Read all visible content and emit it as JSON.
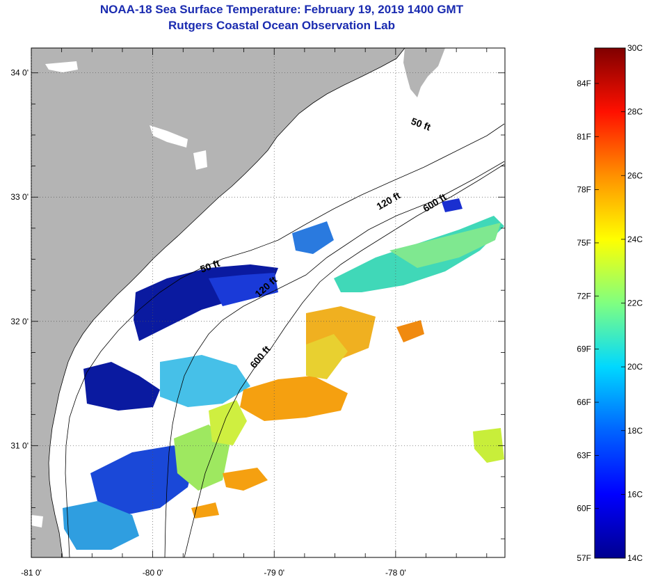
{
  "header": {
    "title": "NOAA-18 Sea Surface Temperature:  February 19, 2019 1400 GMT",
    "subtitle": "Rutgers Coastal Ocean Observation Lab"
  },
  "map": {
    "lat_labels": [
      "34 0'",
      "33 0'",
      "32 0'",
      "31 0'"
    ],
    "lon_labels": [
      "-81 0'",
      "-80 0'",
      "-79 0'",
      "-78 0'"
    ],
    "lat_values": [
      34,
      33,
      32,
      31
    ],
    "lon_values": [
      -81,
      -80,
      -79,
      -78
    ],
    "extent": {
      "lon_min": -81.0,
      "lon_max": -77.1,
      "lat_min": 30.1,
      "lat_max": 34.2
    },
    "isobath_labels": [
      "50 ft",
      "50 ft",
      "120 ft",
      "120 ft",
      "600 ft",
      "600 ft"
    ],
    "colors": {
      "land": "#b4b4b4",
      "ocean_no_data": "#ffffff",
      "coastline": "#000000"
    }
  },
  "colorbar": {
    "celsius_labels": [
      "30C",
      "28C",
      "26C",
      "24C",
      "22C",
      "20C",
      "18C",
      "16C",
      "14C"
    ],
    "fahrenheit_labels": [
      "84F",
      "81F",
      "78F",
      "75F",
      "72F",
      "69F",
      "66F",
      "63F",
      "60F",
      "57F"
    ],
    "range_c": [
      14,
      30
    ],
    "colors": [
      "#00008f",
      "#0000ff",
      "#0080ff",
      "#00ffff",
      "#80ff80",
      "#ffff00",
      "#ff8000",
      "#ff0000",
      "#800000"
    ]
  }
}
